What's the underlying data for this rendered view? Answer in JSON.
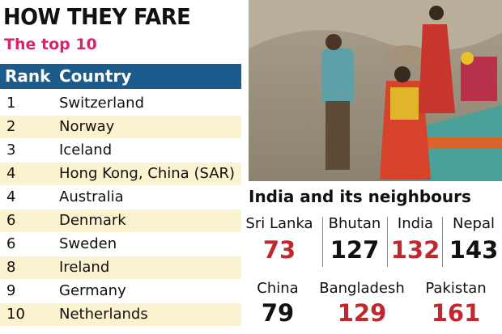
{
  "header": {
    "title": "HOW THEY FARE",
    "subtitle": "The top 10"
  },
  "table": {
    "columns": [
      "Rank",
      "Country"
    ],
    "rows": [
      [
        1,
        "Switzerland"
      ],
      [
        2,
        "Norway"
      ],
      [
        3,
        "Iceland"
      ],
      [
        4,
        "Hong Kong, China (SAR)"
      ],
      [
        4,
        "Australia"
      ],
      [
        6,
        "Denmark"
      ],
      [
        6,
        "Sweden"
      ],
      [
        8,
        "Ireland"
      ],
      [
        9,
        "Germany"
      ],
      [
        10,
        "Netherlands"
      ]
    ]
  },
  "neighbours": {
    "title": "India and its neighbours",
    "items": [
      {
        "name": "Sri Lanka",
        "rank": 73,
        "color": "#c0282d"
      },
      {
        "name": "Bhutan",
        "rank": 127,
        "color": "#111111"
      },
      {
        "name": "India",
        "rank": 132,
        "color": "#c0282d"
      },
      {
        "name": "Nepal",
        "rank": 143,
        "color": "#111111"
      },
      {
        "name": "China",
        "rank": 79,
        "color": "#111111"
      },
      {
        "name": "Bangladesh",
        "rank": 129,
        "color": "#c0282d"
      },
      {
        "name": "Pakistan",
        "rank": 161,
        "color": "#c0282d"
      }
    ]
  }
}
